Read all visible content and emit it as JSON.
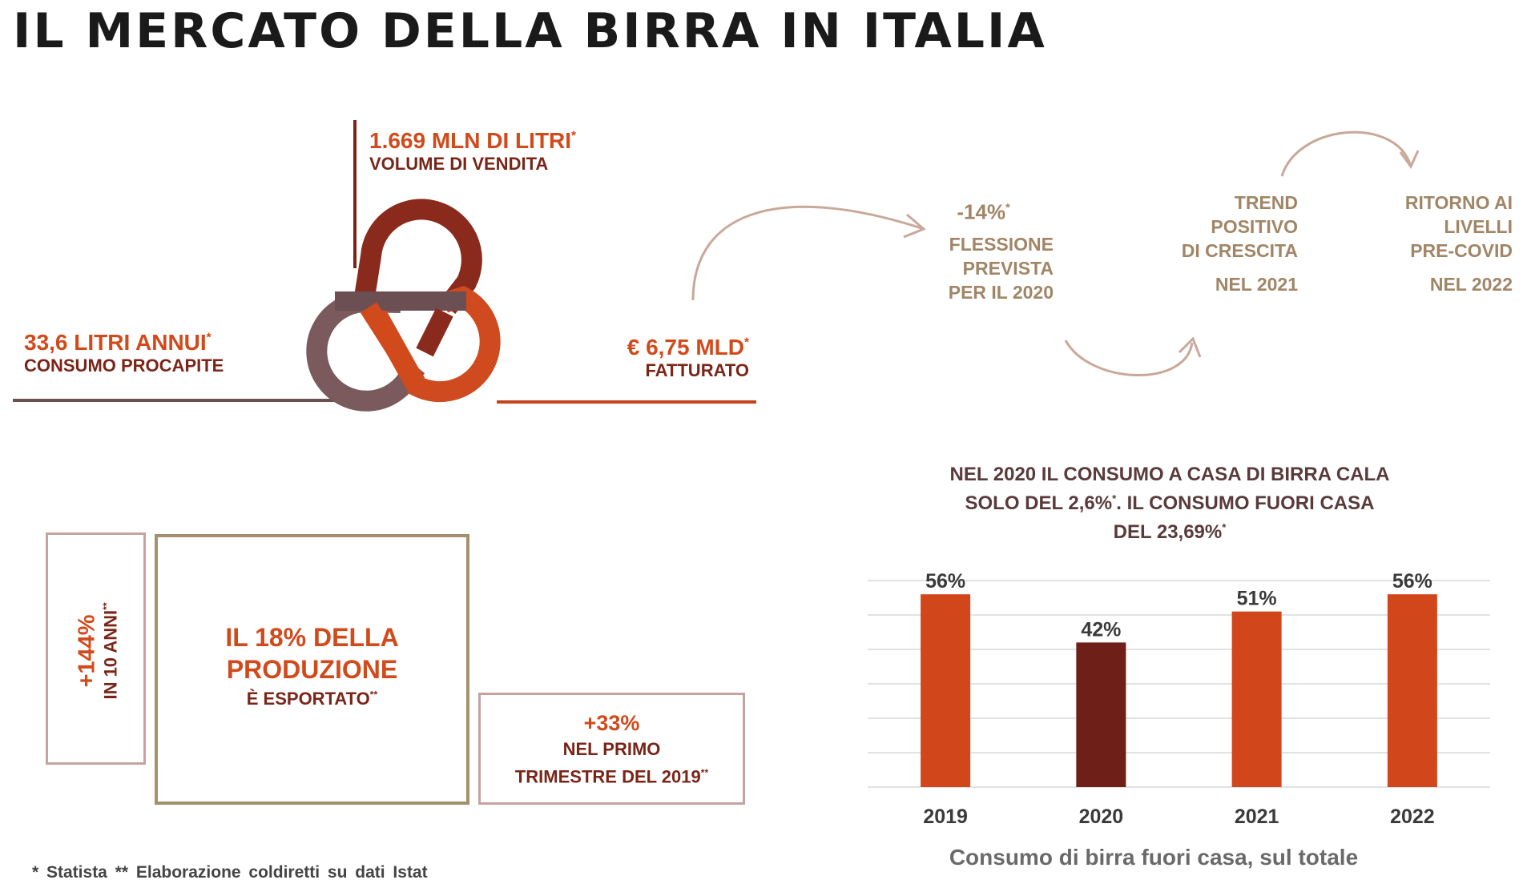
{
  "title": "IL MERCATO DELLA BIRRA IN ITALIA",
  "stats": {
    "volume": {
      "value": "1.669 MLN DI LITRI",
      "mark": "*",
      "label": "VOLUME DI VENDITA"
    },
    "consumption": {
      "value": "33,6 LITRI ANNUI",
      "mark": "*",
      "label": "CONSUMO PROCAPITE"
    },
    "revenue": {
      "value": "€ 6,75 MLD",
      "mark": "*",
      "label": "FATTURATO"
    }
  },
  "trend": {
    "step1": {
      "value": "-14%",
      "mark": "*",
      "line1": "FLESSIONE",
      "line2": "PREVISTA",
      "line3": "PER IL 2020"
    },
    "step2": {
      "line1": "TREND",
      "line2": "POSITIVO",
      "line3": "DI CRESCITA",
      "year": "NEL 2021"
    },
    "step3": {
      "line1": "RITORNO AI",
      "line2": "LIVELLI",
      "line3": "PRE-COVID",
      "year": "NEL 2022"
    }
  },
  "boxes": {
    "growth": {
      "value": "+144%",
      "label": "IN 10 ANNI",
      "mark": "**"
    },
    "export": {
      "line1": "IL 18% DELLA",
      "line2": "PRODUZIONE",
      "line3": "È ESPORTATO",
      "mark": "**"
    },
    "quarter": {
      "value": "+33%",
      "line1": "NEL PRIMO",
      "line2": "TRIMESTRE DEL 2019",
      "mark": "**"
    }
  },
  "chart_heading": {
    "line1": "NEL 2020 IL CONSUMO A CASA DI BIRRA CALA",
    "line2a": "SOLO DEL 2,6%",
    "line2mark": "*",
    "line2b": ". IL CONSUMO FUORI CASA",
    "line3": "DEL 23,69%",
    "line3mark": "*"
  },
  "chart_data": {
    "type": "bar",
    "categories": [
      "2019",
      "2020",
      "2021",
      "2022"
    ],
    "values": [
      56,
      42,
      51,
      56
    ],
    "data_labels": [
      "56%",
      "42%",
      "51%",
      "56%"
    ],
    "bar_colors": [
      "#d1461b",
      "#6e1f17",
      "#d1461b",
      "#d1461b"
    ],
    "ylim": [
      0,
      60
    ],
    "grid": true,
    "xlabel": "Consumo di birra fuori casa, sul totale",
    "ylabel": ""
  },
  "footnote": "* Statista   ** Elaborazione coldiretti su dati Istat",
  "colors": {
    "orange": "#d14a1b",
    "dark_red": "#7a2518",
    "tan": "#a08666",
    "pink_border": "#c4a3a0",
    "gold_border": "#a4906c",
    "ring_gray": "#6b4f52"
  }
}
